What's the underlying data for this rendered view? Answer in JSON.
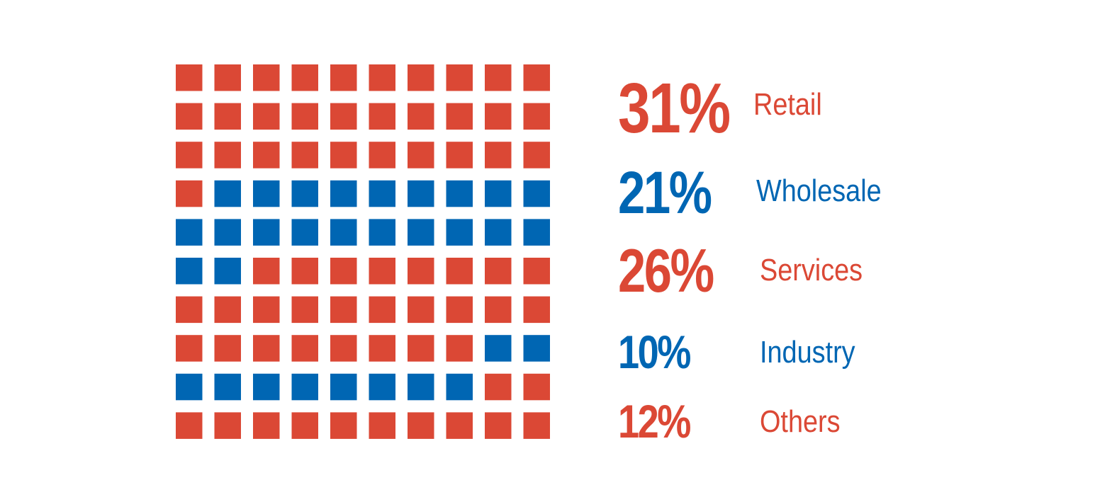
{
  "chart_data": {
    "type": "waffle",
    "grid": {
      "rows": 10,
      "cols": 10,
      "fill_order": "row-major"
    },
    "categories": [
      "Retail",
      "Wholesale",
      "Services",
      "Industry",
      "Others"
    ],
    "values": [
      31,
      21,
      26,
      10,
      12
    ],
    "labels": [
      "31%",
      "21%",
      "26%",
      "10%",
      "12%"
    ],
    "units": "%",
    "legend": "right",
    "colors": [
      "#db4835",
      "#0066b3",
      "#db4835",
      "#0066b3",
      "#db4835"
    ]
  }
}
